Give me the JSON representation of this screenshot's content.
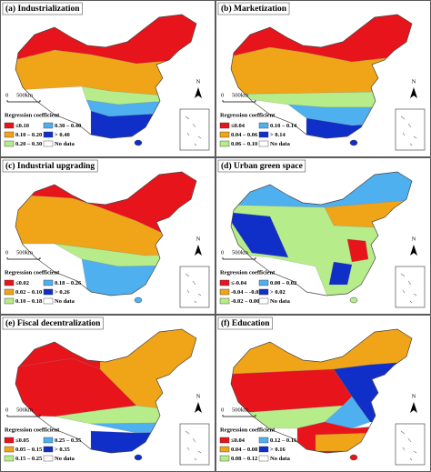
{
  "panels": [
    {
      "title": "(a) Industrialization",
      "legend_title": "Regression coefficient",
      "scale_start": "0",
      "scale_end": "500km",
      "north": "N",
      "legend": [
        {
          "label": "≤0.10",
          "color": "#e8141b"
        },
        {
          "label": "0.10 – 0.20",
          "color": "#f0a418"
        },
        {
          "label": "0.20 – 0.30",
          "color": "#b6ec8a"
        },
        {
          "label": "0.30 – 0.40",
          "color": "#4fb0f0"
        },
        {
          "label": "> 0.40",
          "color": "#0f2fc8"
        },
        {
          "label": "No data",
          "color": "#ffffff"
        }
      ]
    },
    {
      "title": "(b) Marketization",
      "legend_title": "Regression coefficient",
      "scale_start": "0",
      "scale_end": "500km",
      "north": "N",
      "legend": [
        {
          "label": "≤0.04",
          "color": "#e8141b"
        },
        {
          "label": "0.04 – 0.06",
          "color": "#f0a418"
        },
        {
          "label": "0.06 – 0.10",
          "color": "#b6ec8a"
        },
        {
          "label": "0.10 – 0.14",
          "color": "#4fb0f0"
        },
        {
          "label": "> 0.14",
          "color": "#0f2fc8"
        },
        {
          "label": "No data",
          "color": "#ffffff"
        }
      ]
    },
    {
      "title": "(c) Industrial upgrading",
      "legend_title": "Regression coefficient",
      "scale_start": "0",
      "scale_end": "500km",
      "north": "N",
      "legend": [
        {
          "label": "≤0.02",
          "color": "#e8141b"
        },
        {
          "label": "0.02 – 0.10",
          "color": "#f0a418"
        },
        {
          "label": "0.10 – 0.18",
          "color": "#b6ec8a"
        },
        {
          "label": "0.18 – 0.26",
          "color": "#4fb0f0"
        },
        {
          "label": "> 0.26",
          "color": "#0f2fc8"
        },
        {
          "label": "No data",
          "color": "#ffffff"
        }
      ]
    },
    {
      "title": "(d) Urban green space",
      "legend_title": "Regression coefficient",
      "scale_start": "0",
      "scale_end": "500km",
      "north": "N",
      "legend": [
        {
          "label": "≤-0.04",
          "color": "#e8141b"
        },
        {
          "label": "-0.04 – -0.02",
          "color": "#f0a418"
        },
        {
          "label": "-0.02 – 0.00",
          "color": "#b6ec8a"
        },
        {
          "label": "0.00 – 0.02",
          "color": "#4fb0f0"
        },
        {
          "label": "> 0.02",
          "color": "#0f2fc8"
        },
        {
          "label": "No data",
          "color": "#ffffff"
        }
      ]
    },
    {
      "title": "(e) Fiscal decentralization",
      "legend_title": "Regression coefficient",
      "scale_start": "0",
      "scale_end": "500km",
      "north": "N",
      "legend": [
        {
          "label": "≤0.05",
          "color": "#e8141b"
        },
        {
          "label": "0.05 – 0.15",
          "color": "#f0a418"
        },
        {
          "label": "0.15 – 0.25",
          "color": "#b6ec8a"
        },
        {
          "label": "0.25 – 0.35",
          "color": "#4fb0f0"
        },
        {
          "label": "> 0.35",
          "color": "#0f2fc8"
        },
        {
          "label": "No data",
          "color": "#ffffff"
        }
      ]
    },
    {
      "title": "(f) Education",
      "legend_title": "Regression coefficient",
      "scale_start": "0",
      "scale_end": "500km",
      "north": "N",
      "legend": [
        {
          "label": "≤0.04",
          "color": "#e8141b"
        },
        {
          "label": "0.04 – 0.08",
          "color": "#f0a418"
        },
        {
          "label": "0.08 – 0.12",
          "color": "#b6ec8a"
        },
        {
          "label": "0.12 – 0.16",
          "color": "#4fb0f0"
        },
        {
          "label": "> 0.16",
          "color": "#0f2fc8"
        },
        {
          "label": "No data",
          "color": "#ffffff"
        }
      ]
    }
  ]
}
